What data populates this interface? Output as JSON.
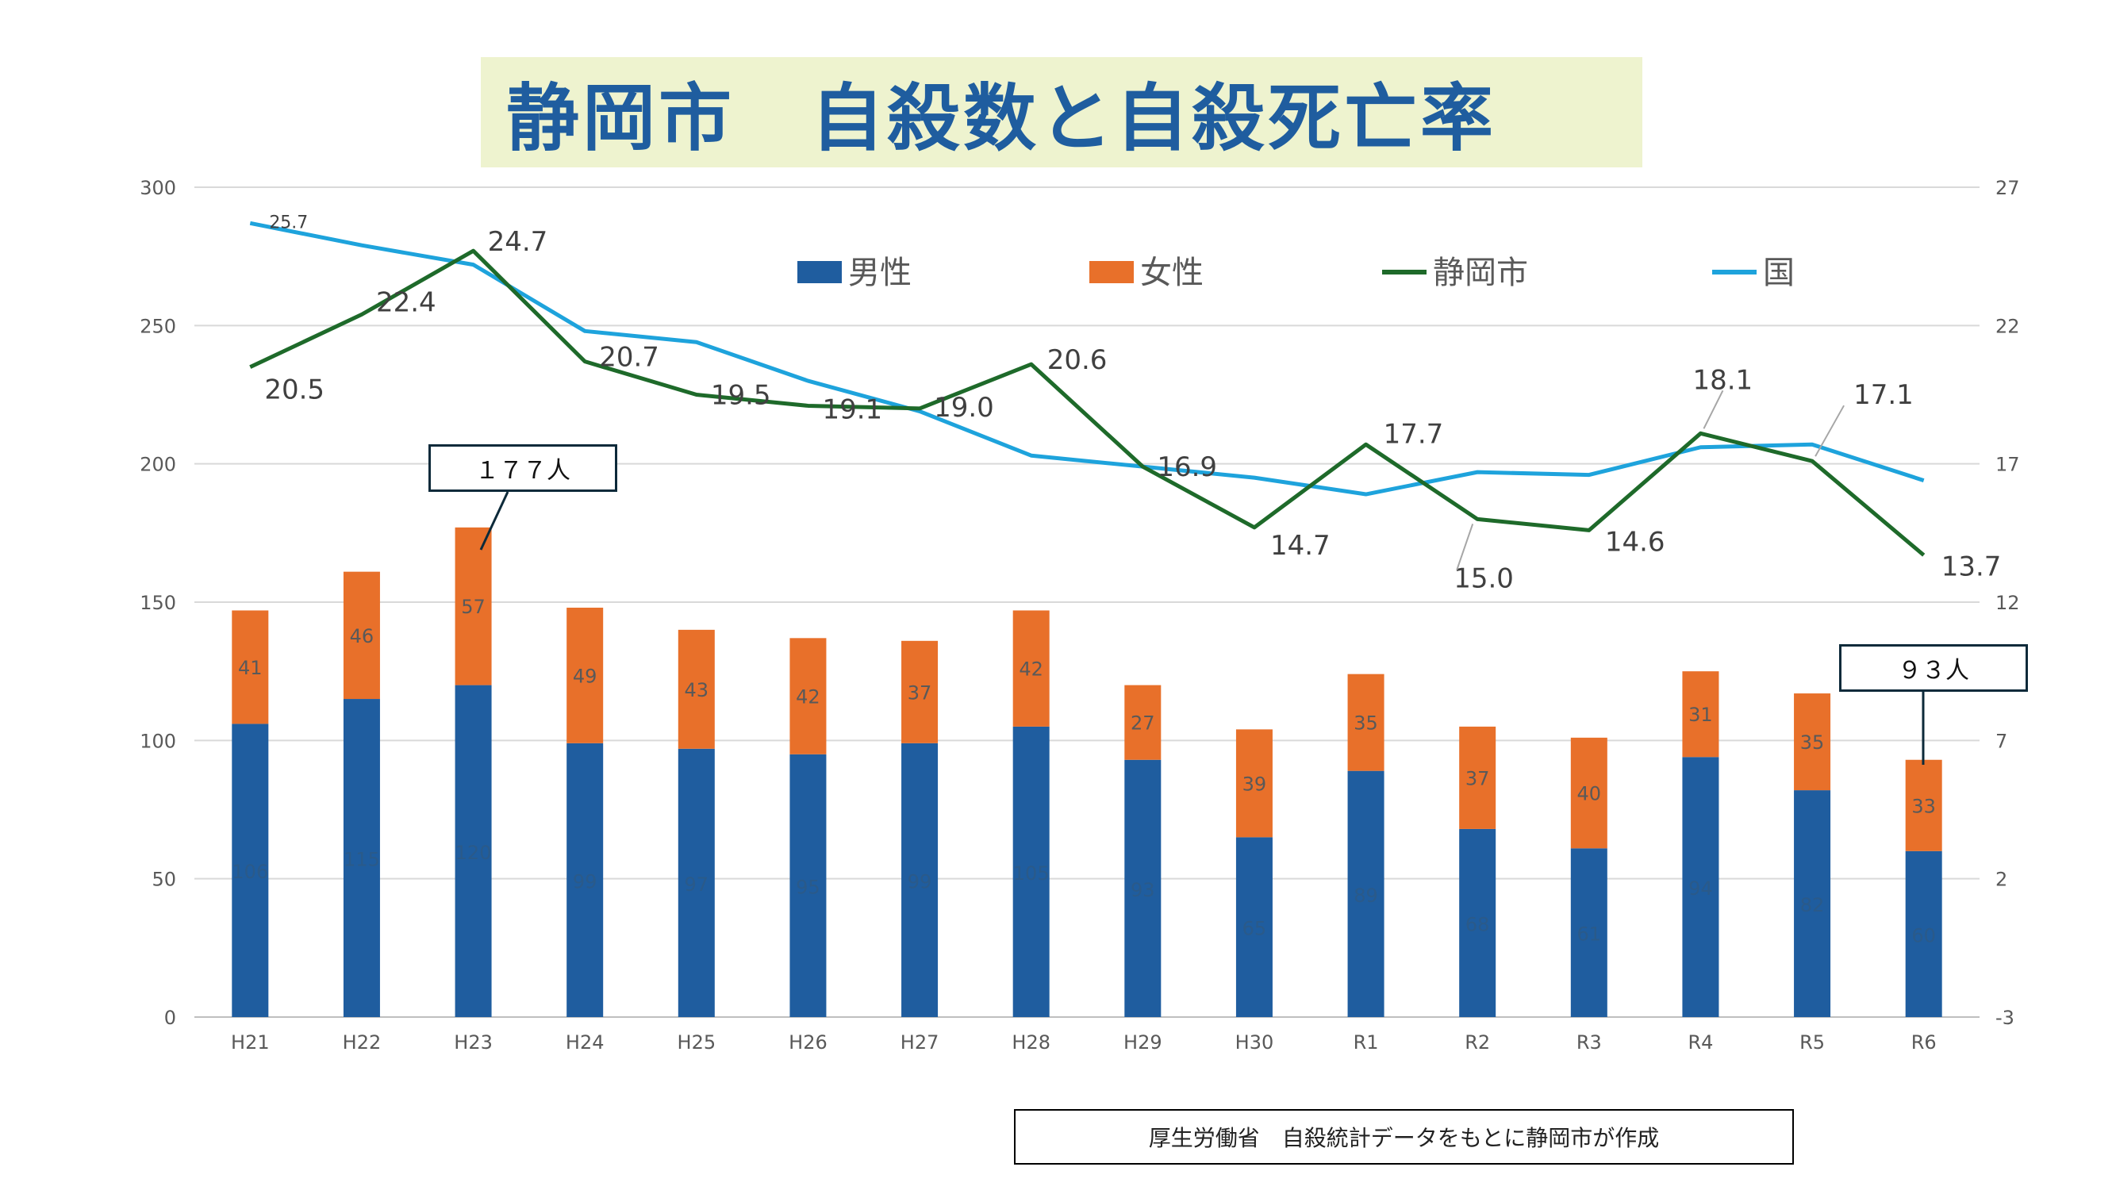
{
  "title": "静岡市　自殺数と自殺死亡率",
  "source": "厚生労働省　自殺統計データをもとに静岡市が作成",
  "callouts": {
    "h23": "１７７人",
    "r6": "９３人"
  },
  "colors": {
    "male": "#1f5d9f",
    "female": "#e8702a",
    "city": "#1e6a2a",
    "nation": "#1ea3dc",
    "title_bg": "#eef3cf",
    "title_text": "#1f5d9f"
  },
  "chart_data": {
    "type": "bar",
    "stacked": true,
    "categories": [
      "H21",
      "H22",
      "H23",
      "H24",
      "H25",
      "H26",
      "H27",
      "H28",
      "H29",
      "H30",
      "R1",
      "R2",
      "R3",
      "R4",
      "R5",
      "R6"
    ],
    "series": [
      {
        "name": "男性",
        "type": "bar",
        "axis": "left",
        "values": [
          106,
          115,
          120,
          99,
          97,
          95,
          99,
          105,
          93,
          65,
          89,
          68,
          61,
          94,
          82,
          60
        ]
      },
      {
        "name": "女性",
        "type": "bar",
        "axis": "left",
        "values": [
          41,
          46,
          57,
          49,
          43,
          42,
          37,
          42,
          27,
          39,
          35,
          37,
          40,
          31,
          35,
          33
        ]
      },
      {
        "name": "静岡市",
        "type": "line",
        "axis": "right",
        "values": [
          20.5,
          22.4,
          24.7,
          20.7,
          19.5,
          19.1,
          19.0,
          20.6,
          16.9,
          14.7,
          17.7,
          15.0,
          14.6,
          18.1,
          17.1,
          13.7
        ]
      },
      {
        "name": "国",
        "type": "line",
        "axis": "right",
        "values": [
          25.7,
          24.9,
          24.2,
          21.8,
          21.4,
          20.0,
          18.9,
          17.3,
          16.9,
          16.5,
          15.9,
          16.7,
          16.6,
          17.6,
          17.7,
          16.4
        ]
      }
    ],
    "nation_first_label": "25.7",
    "ylim_left": [
      0,
      300
    ],
    "ylim_right": [
      -3,
      27
    ],
    "yticks_left": [
      "0",
      "50",
      "100",
      "150",
      "200",
      "250",
      "300"
    ],
    "yticks_right": [
      "-3",
      "2",
      "7",
      "12",
      "17",
      "22",
      "27"
    ],
    "legend": "top",
    "grid": true
  }
}
